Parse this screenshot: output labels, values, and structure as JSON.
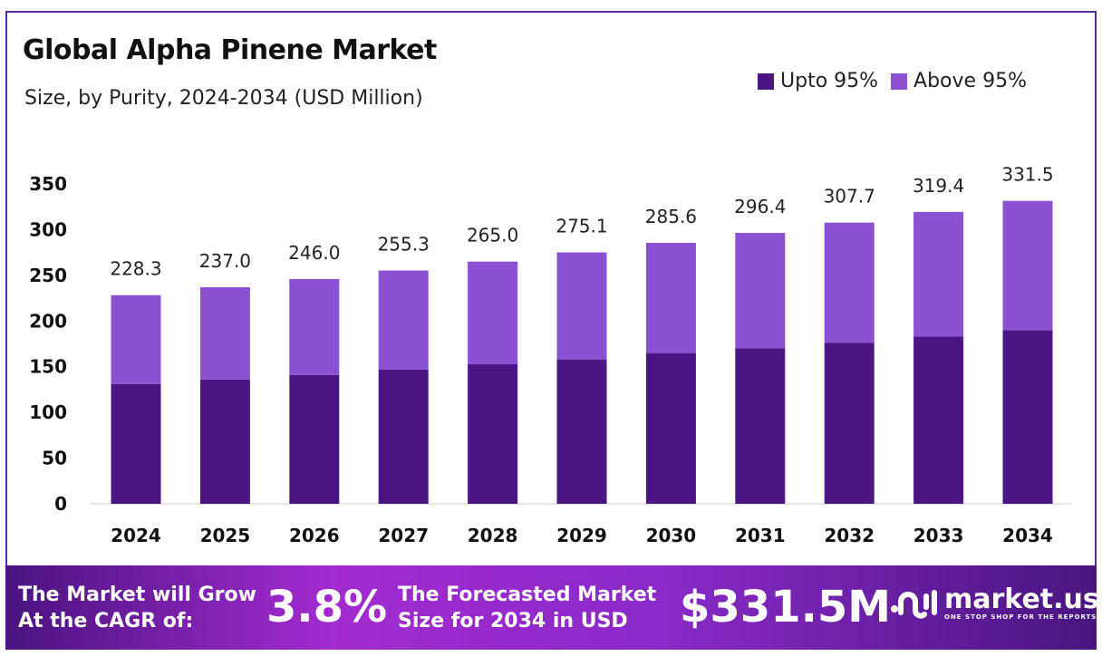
{
  "title": "Global Alpha Pinene Market",
  "subtitle": "Size, by Purity, 2024-2034 (USD Million)",
  "colors": {
    "upto": "#4b1684",
    "above": "#8c50d2",
    "frame": "#5a2a9a"
  },
  "chart_data": {
    "type": "bar",
    "stacked": true,
    "title": "Global Alpha Pinene Market",
    "subtitle": "Size, by Purity, 2024-2034 (USD Million)",
    "categories": [
      "2024",
      "2025",
      "2026",
      "2027",
      "2028",
      "2029",
      "2030",
      "2031",
      "2032",
      "2033",
      "2034"
    ],
    "series": [
      {
        "name": "Upto 95%",
        "values": [
          131,
          136,
          141,
          147,
          153,
          158,
          165,
          170,
          176,
          183,
          190
        ]
      },
      {
        "name": "Above 95%",
        "values": [
          97.3,
          101.0,
          105.0,
          108.3,
          112.0,
          117.1,
          120.6,
          126.4,
          131.7,
          136.4,
          141.5
        ]
      }
    ],
    "totals": [
      "228.3",
      "237.0",
      "246.0",
      "255.3",
      "265.0",
      "275.1",
      "285.6",
      "296.4",
      "307.7",
      "319.4",
      "331.5"
    ],
    "yticks": [
      "0",
      "50",
      "100",
      "150",
      "200",
      "250",
      "300",
      "350"
    ],
    "ylim": [
      0,
      350
    ],
    "grid": false,
    "legend": "top-right"
  },
  "footer": {
    "cagr_label_1": "The Market will Grow",
    "cagr_label_2": "At the CAGR of:",
    "cagr_value": "3.8%",
    "forecast_label_1": "The Forecasted Market",
    "forecast_label_2": "Size for 2034 in USD",
    "forecast_value": "$331.5M",
    "logo_name": "market.us",
    "logo_tagline": "ONE STOP SHOP FOR THE REPORTS"
  }
}
